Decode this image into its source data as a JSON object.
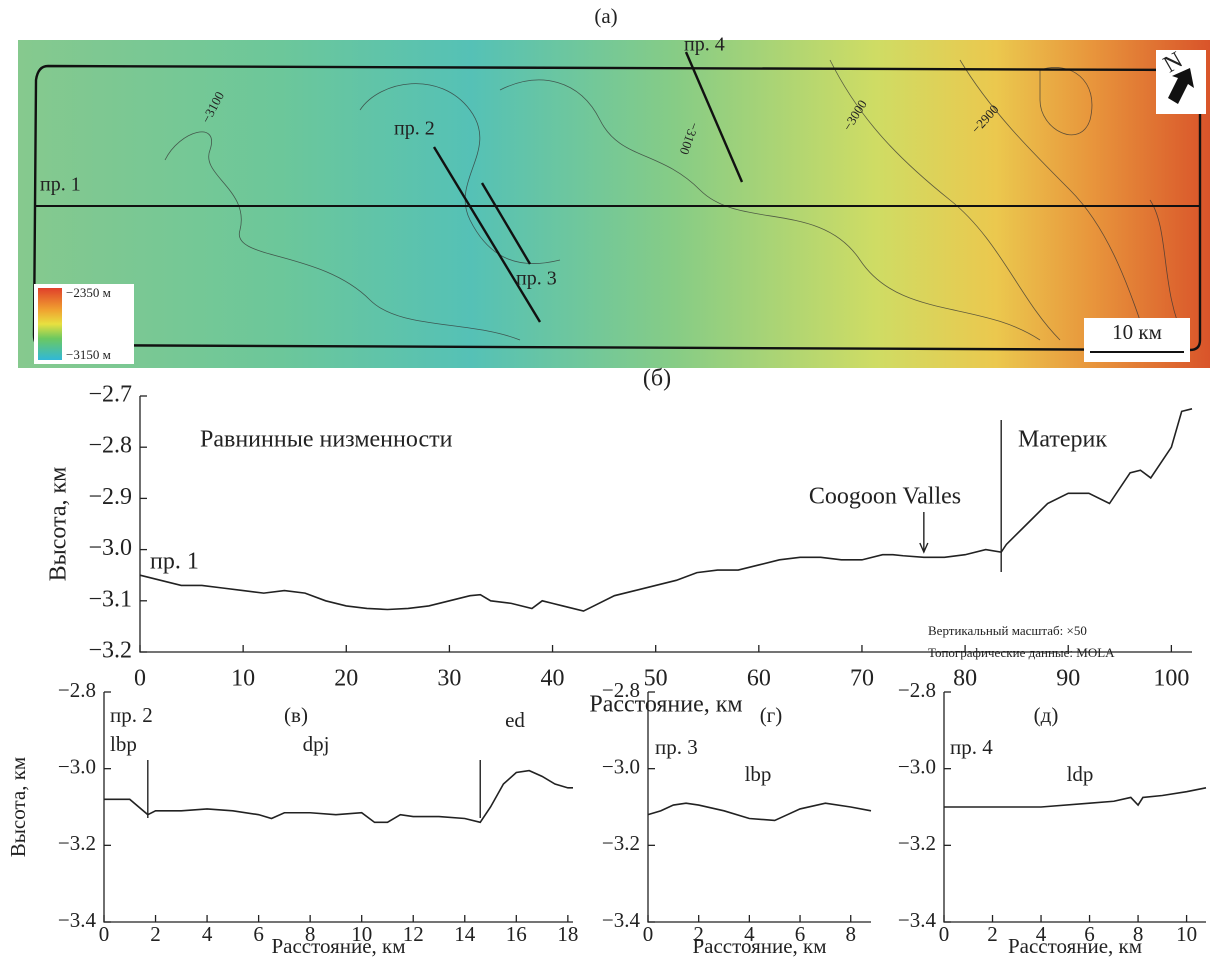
{
  "map": {
    "panel_label": "(а)",
    "profile_labels": [
      "пр. 1",
      "пр. 2",
      "пр. 3",
      "пр. 4"
    ],
    "contour_labels": [
      "−3100",
      "−3100",
      "−3000",
      "−2900"
    ],
    "legend_max": "−2350 м",
    "legend_min": "−3150 м",
    "scale": "10 км"
  },
  "chart_data": [
    {
      "type": "line",
      "panel_label": "(б)",
      "ylabel": "Высота, км",
      "xlabel": "Расстояние, км",
      "annotations": [
        "Равнинные низменности",
        "Материк",
        "Coogoon Valles",
        "Вертикальный масштаб: ×50",
        "Топографические данные: MOLA"
      ],
      "vlines": [
        83.5
      ],
      "arrow_x": 76,
      "x": [
        0,
        2,
        4,
        6,
        8,
        10,
        12,
        14,
        16,
        18,
        20,
        22,
        24,
        26,
        28,
        30,
        32,
        33,
        34,
        36,
        38,
        39,
        40,
        41,
        43,
        44,
        46,
        48,
        50,
        52,
        54,
        56,
        58,
        60,
        62,
        64,
        66,
        68,
        70,
        72,
        73,
        74,
        76,
        78,
        80,
        82,
        83.5,
        84,
        86,
        88,
        90,
        92,
        94,
        96,
        97,
        98,
        100,
        101,
        102
      ],
      "series": [
        {
          "name": "пр. 1",
          "color": "#222222",
          "values": [
            -3.05,
            -3.06,
            -3.07,
            -3.07,
            -3.075,
            -3.08,
            -3.085,
            -3.08,
            -3.085,
            -3.1,
            -3.11,
            -3.115,
            -3.117,
            -3.115,
            -3.11,
            -3.1,
            -3.09,
            -3.088,
            -3.1,
            -3.105,
            -3.115,
            -3.1,
            -3.105,
            -3.11,
            -3.12,
            -3.11,
            -3.09,
            -3.08,
            -3.07,
            -3.06,
            -3.045,
            -3.04,
            -3.04,
            -3.03,
            -3.02,
            -3.015,
            -3.015,
            -3.02,
            -3.02,
            -3.01,
            -3.01,
            -3.012,
            -3.015,
            -3.015,
            -3.01,
            -3.0,
            -3.005,
            -2.99,
            -2.95,
            -2.91,
            -2.89,
            -2.89,
            -2.91,
            -2.85,
            -2.845,
            -2.86,
            -2.8,
            -2.73,
            -2.725
          ]
        }
      ],
      "xlim": [
        0,
        102
      ],
      "ylim": [
        -3.2,
        -2.7
      ],
      "xticks": [
        0,
        10,
        20,
        30,
        40,
        50,
        60,
        70,
        80,
        90,
        100
      ],
      "yticks": [
        {
          "value": -2.7,
          "label": "−2.7"
        },
        {
          "value": -2.8,
          "label": "−2.8"
        },
        {
          "value": -2.9,
          "label": "−2.9"
        },
        {
          "value": -3.0,
          "label": "−3.0"
        },
        {
          "value": -3.1,
          "label": "−3.1"
        },
        {
          "value": -3.2,
          "label": "−3.2"
        }
      ]
    },
    {
      "type": "line",
      "panel_label": "(в)",
      "ylabel": "Высота, км",
      "xlabel": "Расстояние, км",
      "annotations": [
        "lbp",
        "dpj",
        "ed"
      ],
      "vlines": [
        1.7,
        14.6
      ],
      "x": [
        0,
        1,
        1.7,
        2,
        3,
        4,
        5,
        6,
        6.5,
        7,
        8,
        9,
        10,
        10.5,
        11,
        11.5,
        12,
        13,
        14,
        14.6,
        15,
        15.5,
        16,
        16.5,
        17,
        17.5,
        18,
        18.2
      ],
      "series": [
        {
          "name": "пр. 2",
          "color": "#222222",
          "values": [
            -3.08,
            -3.08,
            -3.12,
            -3.11,
            -3.11,
            -3.105,
            -3.11,
            -3.12,
            -3.13,
            -3.115,
            -3.115,
            -3.12,
            -3.115,
            -3.14,
            -3.14,
            -3.12,
            -3.125,
            -3.125,
            -3.13,
            -3.14,
            -3.1,
            -3.04,
            -3.01,
            -3.005,
            -3.02,
            -3.04,
            -3.05,
            -3.05
          ]
        }
      ],
      "xlim": [
        0,
        18.2
      ],
      "ylim": [
        -3.4,
        -2.8
      ],
      "xticks": [
        0,
        2,
        4,
        6,
        8,
        10,
        12,
        14,
        16,
        18
      ],
      "yticks": [
        {
          "value": -2.8,
          "label": "−2.8"
        },
        {
          "value": -3.0,
          "label": "−3.0"
        },
        {
          "value": -3.2,
          "label": "−3.2"
        },
        {
          "value": -3.4,
          "label": "−3.4"
        }
      ]
    },
    {
      "type": "line",
      "panel_label": "(г)",
      "xlabel": "Расстояние, км",
      "annotations": [
        "lbp"
      ],
      "x": [
        0,
        0.5,
        1,
        1.5,
        2,
        3,
        4,
        5,
        5.5,
        6,
        7,
        8,
        8.8
      ],
      "series": [
        {
          "name": "пр. 3",
          "color": "#222222",
          "values": [
            -3.12,
            -3.11,
            -3.095,
            -3.09,
            -3.095,
            -3.11,
            -3.13,
            -3.135,
            -3.12,
            -3.105,
            -3.09,
            -3.1,
            -3.11
          ]
        }
      ],
      "xlim": [
        0,
        8.8
      ],
      "ylim": [
        -3.4,
        -2.8
      ],
      "xticks": [
        0,
        2,
        4,
        6,
        8
      ],
      "yticks": [
        {
          "value": -2.8,
          "label": "−2.8"
        },
        {
          "value": -3.0,
          "label": "−3.0"
        },
        {
          "value": -3.2,
          "label": "−3.2"
        },
        {
          "value": -3.4,
          "label": "−3.4"
        }
      ]
    },
    {
      "type": "line",
      "panel_label": "(д)",
      "xlabel": "Расстояние, км",
      "annotations": [
        "ldp"
      ],
      "x": [
        0,
        2,
        4,
        6,
        7,
        7.7,
        8,
        8.2,
        9,
        10,
        10.8
      ],
      "series": [
        {
          "name": "пр. 4",
          "color": "#222222",
          "values": [
            -3.1,
            -3.1,
            -3.1,
            -3.09,
            -3.085,
            -3.075,
            -3.095,
            -3.075,
            -3.07,
            -3.06,
            -3.05
          ]
        }
      ],
      "xlim": [
        0,
        10.8
      ],
      "ylim": [
        -3.4,
        -2.8
      ],
      "xticks": [
        0,
        2,
        4,
        6,
        8,
        10
      ],
      "yticks": [
        {
          "value": -2.8,
          "label": "−2.8"
        },
        {
          "value": -3.0,
          "label": "−3.0"
        },
        {
          "value": -3.2,
          "label": "−3.2"
        },
        {
          "value": -3.4,
          "label": "−3.4"
        }
      ]
    }
  ]
}
